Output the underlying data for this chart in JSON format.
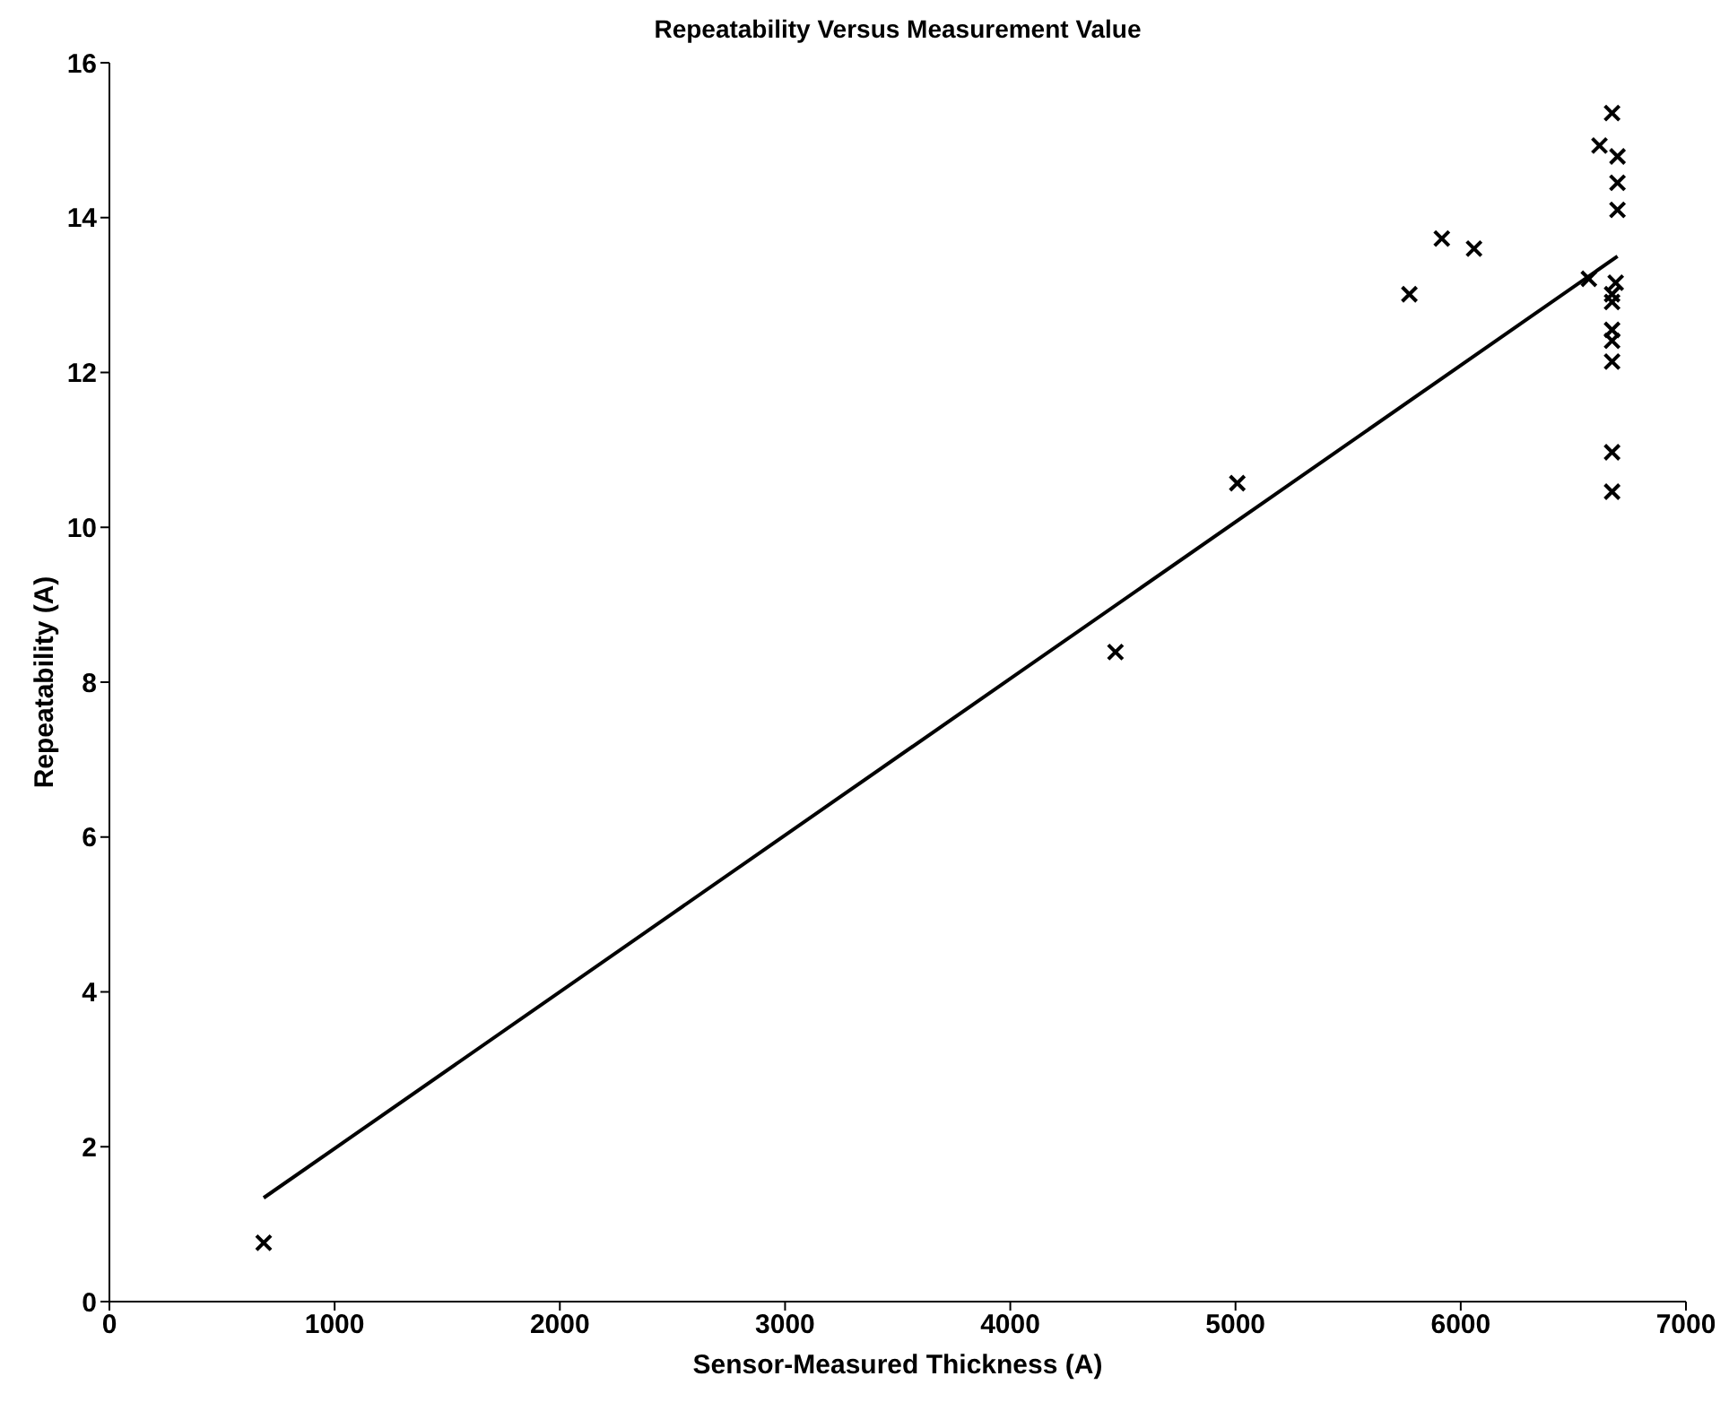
{
  "chart_data": {
    "type": "scatter",
    "title": "Repeatability Versus Measurement Value",
    "xlabel": "Sensor-Measured Thickness (A)",
    "ylabel": "Repeatability (A)",
    "xlim": [
      0,
      7000
    ],
    "xticks": [
      0,
      1000,
      2000,
      3000,
      4000,
      5000,
      6000,
      7000
    ],
    "ylim": [
      0,
      16
    ],
    "yticks": [
      0,
      2,
      4,
      6,
      8,
      10,
      12,
      14,
      16
    ],
    "marker": "cross",
    "series": [
      {
        "color": "#000000",
        "x": [
          685,
          4467,
          5008,
          5772,
          5916,
          6059,
          6569,
          6616,
          6672,
          6696,
          6696,
          6696,
          6688,
          6672,
          6672,
          6672,
          6672,
          6672,
          6672
        ],
        "values": [
          0.76,
          8.39,
          10.57,
          13.01,
          13.73,
          13.6,
          13.21,
          14.93,
          15.35,
          14.79,
          14.45,
          14.1,
          13.16,
          13.01,
          12.91,
          12.55,
          12.41,
          12.14,
          10.97
        ]
      },
      {
        "color": "#000000",
        "x": [
          6672
        ],
        "values": [
          10.46
        ]
      },
      {
        "type": "line",
        "color": "#000000",
        "marker": "none",
        "line_style": "solid",
        "x": [
          685,
          6696
        ],
        "values": [
          1.34,
          13.5
        ]
      }
    ]
  }
}
